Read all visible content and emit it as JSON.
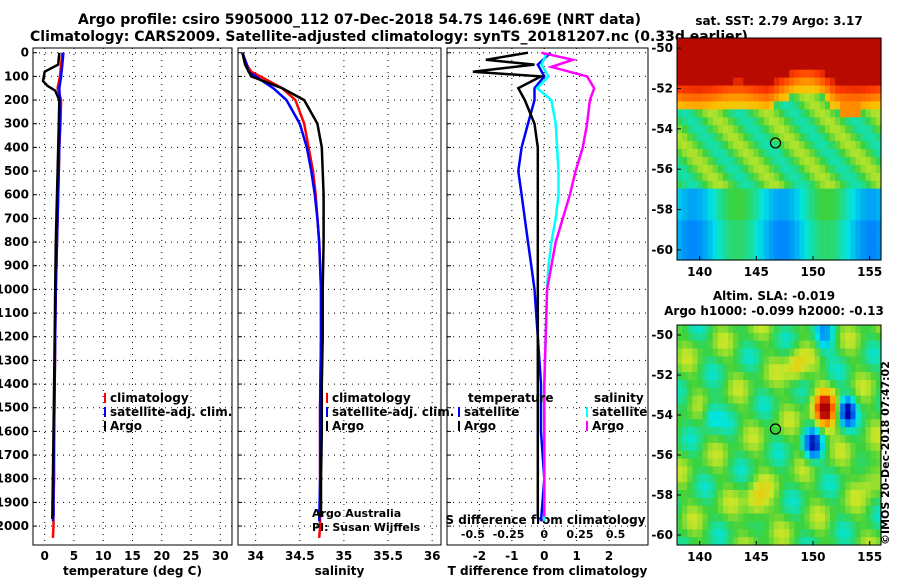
{
  "header": {
    "line1": "Argo profile: csiro 5905000_112 07-Dec-2018 54.7S 146.69E (NRT data)",
    "line2": "Climatology: CARS2009. Satellite-adjusted climatology: synTS_20181207.nc (0.33d earlier)"
  },
  "colors": {
    "climatology": "#ff0000",
    "satellite": "#0000ff",
    "argo": "#000000",
    "sat_t": "#ff0000",
    "sat_s": "#00ffff",
    "argo_s": "#ff00ff"
  },
  "depth_ticks": [
    "0",
    "100",
    "200",
    "300",
    "400",
    "500",
    "600",
    "700",
    "800",
    "900",
    "1000",
    "1100",
    "1200",
    "1300",
    "1400",
    "1500",
    "1600",
    "1700",
    "1800",
    "1900",
    "2000"
  ],
  "chart_data": [
    {
      "type": "line",
      "name": "temperature",
      "xlabel": "temperature (deg C)",
      "xlim": [
        -2,
        32
      ],
      "ylim": [
        2080,
        -20
      ],
      "xticks": [
        "0",
        "5",
        "10",
        "15",
        "20",
        "25",
        "30"
      ],
      "legend": [
        "climatology",
        "satellite-adj. clim.",
        "Argo"
      ],
      "series": [
        {
          "name": "climatology",
          "color": "#ff0000",
          "x": [
            3.0,
            2.8,
            2.6,
            2.2,
            2.8,
            2.7,
            2.5,
            2.4,
            2.3,
            2.2,
            2.1,
            2.0,
            1.9,
            1.8,
            1.7,
            1.6,
            1.6,
            1.5,
            1.5,
            1.4
          ],
          "y": [
            0,
            50,
            100,
            150,
            200,
            300,
            400,
            500,
            600,
            700,
            800,
            900,
            1000,
            1200,
            1400,
            1600,
            1800,
            1900,
            2000,
            2050
          ]
        },
        {
          "name": "satellite-adj. clim.",
          "color": "#0000ff",
          "x": [
            3.2,
            3.0,
            2.8,
            2.5,
            2.6,
            2.6,
            2.5,
            2.4,
            2.3,
            2.2,
            2.1,
            2.0,
            1.9,
            1.8,
            1.7,
            1.6,
            1.5,
            1.5,
            1.4
          ],
          "y": [
            0,
            50,
            100,
            150,
            200,
            300,
            400,
            500,
            600,
            700,
            800,
            900,
            1000,
            1200,
            1400,
            1600,
            1800,
            1950,
            1980
          ]
        },
        {
          "name": "Argo",
          "color": "#000000",
          "x": [
            2.5,
            2.3,
            0.0,
            -0.3,
            0.5,
            1.8,
            2.5,
            2.4,
            2.3,
            2.2,
            2.1,
            2.0,
            1.9,
            1.8,
            1.7,
            1.6,
            1.5,
            1.4,
            1.3
          ],
          "y": [
            0,
            50,
            80,
            120,
            140,
            160,
            200,
            300,
            400,
            500,
            600,
            700,
            800,
            1000,
            1200,
            1400,
            1600,
            1800,
            1970
          ]
        }
      ]
    },
    {
      "type": "line",
      "name": "salinity",
      "xlabel": "salinity",
      "xlim": [
        33.8,
        36.1
      ],
      "ylim": [
        2080,
        -20
      ],
      "xticks": [
        "34",
        "34.5",
        "35",
        "35.5",
        "36"
      ],
      "legend": [
        "climatology",
        "satellite-adj. clim.",
        "Argo"
      ],
      "annotation": [
        "Argo Australia",
        "PI: Susan Wijffels"
      ],
      "series": [
        {
          "name": "climatology",
          "color": "#ff0000",
          "x": [
            33.85,
            33.9,
            33.95,
            34.05,
            34.3,
            34.45,
            34.55,
            34.6,
            34.65,
            34.68,
            34.7,
            34.72,
            34.73,
            34.74,
            34.74,
            34.73,
            34.73,
            34.73,
            34.72
          ],
          "y": [
            0,
            50,
            80,
            100,
            150,
            200,
            300,
            400,
            500,
            600,
            700,
            800,
            900,
            1000,
            1200,
            1500,
            1800,
            2000,
            2050
          ]
        },
        {
          "name": "satellite-adj. clim.",
          "color": "#0000ff",
          "x": [
            33.85,
            33.9,
            33.92,
            34.0,
            34.2,
            34.35,
            34.5,
            34.58,
            34.63,
            34.67,
            34.7,
            34.72,
            34.73,
            34.74,
            34.74,
            34.73,
            34.73,
            34.72
          ],
          "y": [
            0,
            50,
            80,
            100,
            150,
            200,
            300,
            400,
            500,
            600,
            700,
            800,
            900,
            1000,
            1200,
            1500,
            1800,
            1980
          ]
        },
        {
          "name": "Argo",
          "color": "#000000",
          "x": [
            33.85,
            33.88,
            33.95,
            34.3,
            34.55,
            34.7,
            34.75,
            34.76,
            34.77,
            34.77,
            34.77,
            34.76,
            34.76,
            34.75,
            34.75,
            34.74,
            34.74
          ],
          "y": [
            0,
            50,
            100,
            150,
            200,
            300,
            400,
            500,
            600,
            700,
            800,
            1000,
            1200,
            1400,
            1600,
            1800,
            1960
          ]
        }
      ]
    },
    {
      "type": "line",
      "name": "difference",
      "xlabel": "T difference from climatology",
      "xlabel_top": "S difference from climatology",
      "xlim": [
        -3,
        3.2
      ],
      "ylim": [
        2080,
        -20
      ],
      "xticks": [
        "-2",
        "-1",
        "0",
        "1",
        "2"
      ],
      "xticks_top": [
        "-0.5",
        "-0.25",
        "0",
        "0.25",
        "0.5"
      ],
      "legend_left_title": "temperature",
      "legend_left": [
        "satellite",
        "Argo"
      ],
      "legend_right_title": "salinity",
      "legend_right": [
        "satellite",
        "Argo"
      ],
      "series": [
        {
          "name": "T satellite",
          "color": "#0000ff",
          "x": [
            0.2,
            -0.2,
            0.0,
            -0.3,
            -0.3,
            -0.5,
            -0.7,
            -0.8,
            -0.7,
            -0.6,
            -0.5,
            -0.4,
            -0.3,
            -0.2,
            -0.1,
            -0.1,
            0.0,
            -0.1
          ],
          "y": [
            0,
            50,
            100,
            150,
            200,
            300,
            400,
            500,
            600,
            700,
            800,
            900,
            1000,
            1200,
            1400,
            1600,
            1800,
            1980
          ]
        },
        {
          "name": "T Argo",
          "color": "#000000",
          "x": [
            -0.5,
            -1.8,
            -0.3,
            -2.2,
            -0.1,
            -0.8,
            -0.6,
            -0.3,
            -0.2,
            -0.2,
            -0.2,
            -0.2,
            -0.2,
            -0.2,
            -0.2,
            -0.2,
            -0.2,
            -0.2,
            -0.2
          ],
          "y": [
            0,
            30,
            50,
            80,
            100,
            150,
            200,
            300,
            400,
            500,
            600,
            800,
            1000,
            1200,
            1400,
            1600,
            1800,
            1950,
            1970
          ]
        },
        {
          "name": "S satellite",
          "color": "#00ffff",
          "x": [
            0.02,
            -0.02,
            0.03,
            -0.05,
            0.05,
            0.08,
            0.09,
            0.1,
            0.1,
            0.08,
            0.05,
            0.03,
            0.02,
            0.01,
            0.0,
            0.0,
            0.0,
            0.0
          ],
          "y": [
            0,
            50,
            100,
            150,
            200,
            300,
            400,
            500,
            600,
            700,
            800,
            900,
            1000,
            1200,
            1400,
            1600,
            1800,
            1980
          ]
        },
        {
          "name": "S Argo",
          "color": "#ff00ff",
          "x": [
            -0.02,
            0.2,
            0.05,
            0.3,
            0.35,
            0.32,
            0.3,
            0.27,
            0.22,
            0.18,
            0.13,
            0.08,
            0.05,
            0.02,
            0.01,
            0.0,
            0.0,
            0.0,
            0.0
          ],
          "y": [
            0,
            30,
            60,
            100,
            150,
            200,
            300,
            400,
            500,
            600,
            700,
            800,
            900,
            1000,
            1200,
            1400,
            1600,
            1800,
            1960
          ]
        }
      ]
    },
    {
      "type": "heatmap",
      "name": "sst-map",
      "title": "sat. SST: 2.79 Argo: 3.17",
      "xlim": [
        138,
        156
      ],
      "ylim": [
        -60.5,
        -49.5
      ],
      "xticks": [
        "140",
        "145",
        "150",
        "155"
      ],
      "yticks": [
        "-50",
        "-52",
        "-54",
        "-56",
        "-58",
        "-60"
      ],
      "marker": {
        "lon": 146.69,
        "lat": -54.7
      }
    },
    {
      "type": "heatmap",
      "name": "sla-map",
      "title1": "Altim. SLA: -0.019",
      "title2": "Argo h1000: -0.099 h2000: -0.13",
      "xlim": [
        138,
        156
      ],
      "ylim": [
        -60.5,
        -49.5
      ],
      "xticks": [
        "140",
        "145",
        "150",
        "155"
      ],
      "yticks": [
        "-50",
        "-52",
        "-54",
        "-56",
        "-58",
        "-60"
      ],
      "marker": {
        "lon": 146.69,
        "lat": -54.7
      },
      "credit": "©IMOS 20-Dec-2018 07:47:02"
    }
  ]
}
